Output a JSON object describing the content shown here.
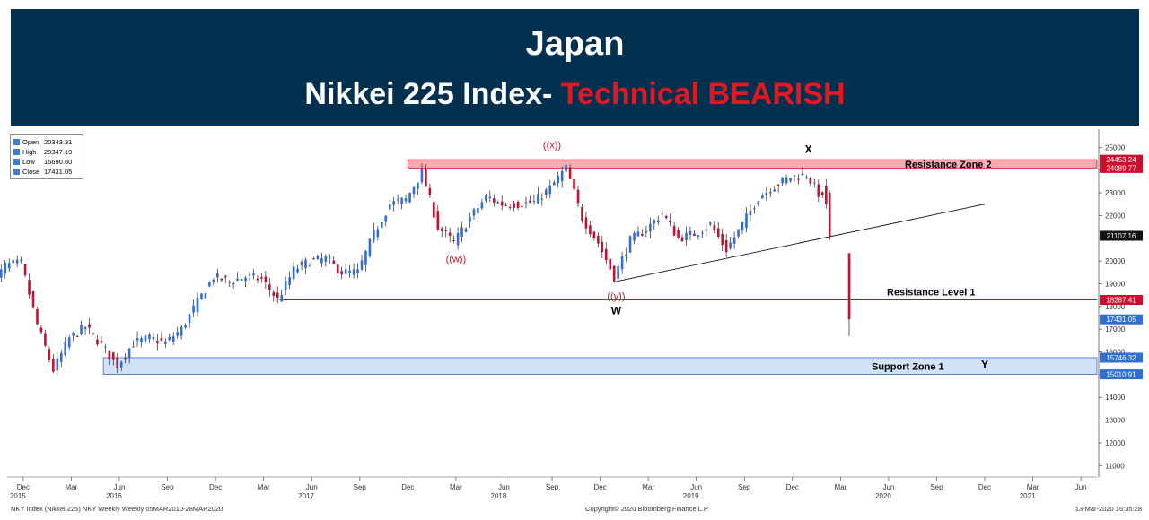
{
  "header": {
    "title": "Japan",
    "subtitle_main": "Nikkei 225 Index-",
    "subtitle_accent": "Technical BEARISH",
    "colors": {
      "banner": "#03304f",
      "accent": "#e3181f"
    }
  },
  "legend_box": {
    "rows": [
      {
        "key": "Open",
        "value": "20343.31"
      },
      {
        "key": "High",
        "value": "20347.19"
      },
      {
        "key": "Low",
        "value": "16690.60"
      },
      {
        "key": "Close",
        "value": "17431.05"
      }
    ]
  },
  "footer": {
    "left": "NKY Index (Nikkei 225) NKY Weekly  Weekly 05MAR2010-28MAR2020",
    "center": "Copyright© 2020 Bloomberg Finance L.P.",
    "right": "13-Mar-2020 16:35:28"
  },
  "chart_data": {
    "type": "candlestick",
    "title": "",
    "xlabel": "",
    "ylabel": "",
    "ylim": [
      10500,
      25800
    ],
    "xlim": [
      "2015-11",
      "2021-07"
    ],
    "grid": false,
    "y_ticks": [
      11000,
      12000,
      13000,
      14000,
      15000,
      16000,
      17000,
      18000,
      19000,
      20000,
      21000,
      22000,
      23000,
      24000,
      25000
    ],
    "y_tick_labels": [
      "11000",
      "12000",
      "13000",
      "14000",
      "15000",
      "16000",
      "17000",
      "18000",
      "19000",
      "20000",
      "21000",
      "22000",
      "23000",
      "24000",
      "25000"
    ],
    "x_ticks": [
      {
        "date": "2015-12",
        "label": "Dec",
        "year": "2015"
      },
      {
        "date": "2016-03",
        "label": "Mar"
      },
      {
        "date": "2016-06",
        "label": "Jun",
        "year": "2016"
      },
      {
        "date": "2016-09",
        "label": "Sep"
      },
      {
        "date": "2016-12",
        "label": "Dec"
      },
      {
        "date": "2017-03",
        "label": "Mar"
      },
      {
        "date": "2017-06",
        "label": "Jun",
        "year": "2017"
      },
      {
        "date": "2017-09",
        "label": "Sep"
      },
      {
        "date": "2017-12",
        "label": "Dec"
      },
      {
        "date": "2018-03",
        "label": "Mar"
      },
      {
        "date": "2018-06",
        "label": "Jun",
        "year": "2018"
      },
      {
        "date": "2018-09",
        "label": "Sep"
      },
      {
        "date": "2018-12",
        "label": "Dec"
      },
      {
        "date": "2019-03",
        "label": "Mar"
      },
      {
        "date": "2019-06",
        "label": "Jun",
        "year": "2019"
      },
      {
        "date": "2019-09",
        "label": "Sep"
      },
      {
        "date": "2019-12",
        "label": "Dec"
      },
      {
        "date": "2020-03",
        "label": "Mar"
      },
      {
        "date": "2020-06",
        "label": "Jun",
        "year": "2020"
      },
      {
        "date": "2020-09",
        "label": "Sep"
      },
      {
        "date": "2020-12",
        "label": "Dec"
      },
      {
        "date": "2021-03",
        "label": "Mar",
        "year": "2021"
      },
      {
        "date": "2021-06",
        "label": "Jun"
      }
    ],
    "colors": {
      "up": "#2f6fd0",
      "down": "#c8102e",
      "wick": "#222222"
    },
    "price_path": [
      [
        "2015-10",
        18700
      ],
      [
        "2015-11",
        19800
      ],
      [
        "2015-12",
        19900
      ],
      [
        "2016-01",
        17200
      ],
      [
        "2016-02",
        15200
      ],
      [
        "2016-03",
        16600
      ],
      [
        "2016-04",
        17100
      ],
      [
        "2016-05",
        16300
      ],
      [
        "2016-06",
        15400
      ],
      [
        "2016-07",
        16400
      ],
      [
        "2016-08",
        16600
      ],
      [
        "2016-09",
        16400
      ],
      [
        "2016-10",
        17000
      ],
      [
        "2016-11",
        18200
      ],
      [
        "2016-12",
        19300
      ],
      [
        "2017-01",
        19100
      ],
      [
        "2017-02",
        19300
      ],
      [
        "2017-03",
        19200
      ],
      [
        "2017-04",
        18300
      ],
      [
        "2017-05",
        19600
      ],
      [
        "2017-06",
        20000
      ],
      [
        "2017-07",
        20100
      ],
      [
        "2017-08",
        19500
      ],
      [
        "2017-09",
        19500
      ],
      [
        "2017-10",
        21200
      ],
      [
        "2017-11",
        22500
      ],
      [
        "2017-12",
        22700
      ],
      [
        "2018-01",
        23900
      ],
      [
        "2018-02",
        21500
      ],
      [
        "2018-03",
        20800
      ],
      [
        "2018-04",
        21900
      ],
      [
        "2018-05",
        22800
      ],
      [
        "2018-06",
        22500
      ],
      [
        "2018-07",
        22500
      ],
      [
        "2018-08",
        22600
      ],
      [
        "2018-09",
        23200
      ],
      [
        "2018-10",
        24100
      ],
      [
        "2018-11",
        21900
      ],
      [
        "2018-12",
        20800
      ],
      [
        "2019-01",
        19300
      ],
      [
        "2019-02",
        20900
      ],
      [
        "2019-03",
        21400
      ],
      [
        "2019-04",
        22100
      ],
      [
        "2019-05",
        21000
      ],
      [
        "2019-06",
        21200
      ],
      [
        "2019-07",
        21600
      ],
      [
        "2019-08",
        20500
      ],
      [
        "2019-09",
        21600
      ],
      [
        "2019-10",
        22800
      ],
      [
        "2019-11",
        23300
      ],
      [
        "2019-12",
        23700
      ],
      [
        "2020-01",
        23800
      ],
      [
        "2020-02",
        22700
      ],
      [
        "2020-03",
        17431
      ]
    ],
    "final_bars": [
      {
        "date": "2020-02",
        "open": 23300,
        "high": 23600,
        "low": 22300,
        "close": 22500
      },
      {
        "date": "2020-02",
        "open": 23000,
        "high": 23100,
        "low": 20900,
        "close": 21100
      },
      {
        "date": "2020-03",
        "open": 20343.31,
        "high": 20347.19,
        "low": 16690.6,
        "close": 17431.05
      }
    ],
    "zones": [
      {
        "name": "Resistance Zone 2",
        "low": 24089.77,
        "high": 24453.24,
        "from": "2017-12",
        "fill": "#f29ca5",
        "edge": "#c8102e",
        "label_color": "#000000"
      },
      {
        "name": "Support Zone 1",
        "low": 15010.91,
        "high": 15746.32,
        "from": "2016-05",
        "fill": "#c9dcf5",
        "edge": "#2f6fd0",
        "label_color": "#000000"
      }
    ],
    "levels": [
      {
        "name": "Resistance Level 1",
        "value": 18287.41,
        "from": "2017-04",
        "color": "#c8102e"
      }
    ],
    "trendline": {
      "from": [
        "2019-01",
        19100
      ],
      "to": [
        "2020-12",
        22500
      ]
    },
    "annotations": [
      {
        "text": "((x))",
        "at": [
          "2018-09",
          24950
        ],
        "color": "#c8102e"
      },
      {
        "text": "((w))",
        "at": [
          "2018-03",
          19950
        ],
        "color": "#c8102e"
      },
      {
        "text": "((y))",
        "at": [
          "2019-01",
          18300
        ],
        "color": "#c8102e"
      },
      {
        "text": "W",
        "at": [
          "2019-01",
          17650
        ],
        "color": "#000000"
      },
      {
        "text": "X",
        "at": [
          "2020-01",
          24750
        ],
        "color": "#000000"
      },
      {
        "text": "Y",
        "at": [
          "2020-12",
          15300
        ],
        "color": "#000000"
      }
    ],
    "price_labels": [
      {
        "value": 24453.24,
        "text": "24453.24",
        "bg": "#c8102e"
      },
      {
        "value": 24089.77,
        "text": "24089.77",
        "bg": "#c8102e"
      },
      {
        "value": 21107.16,
        "text": "21107.16",
        "bg": "#111111"
      },
      {
        "value": 18287.41,
        "text": "18287.41",
        "bg": "#c8102e"
      },
      {
        "value": 17431.05,
        "text": "17431.05",
        "bg": "#2f6fd0"
      },
      {
        "value": 15746.32,
        "text": "15746.32",
        "bg": "#2f6fd0"
      },
      {
        "value": 15010.91,
        "text": "15010.91",
        "bg": "#2f6fd0"
      }
    ]
  }
}
